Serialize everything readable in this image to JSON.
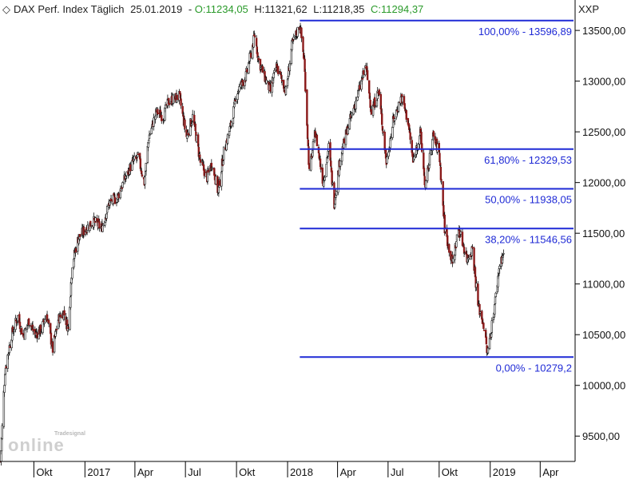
{
  "header": {
    "title": "DAX Perf. Index Täglich",
    "date": "25.01.2019",
    "open": "O:11234,05",
    "high": "H:11321,62",
    "low": "L:11218,35",
    "close": "C:11294,37",
    "symbol_label": "XXP",
    "open_color": "#2a9a2a",
    "high_color": "#222222",
    "low_color": "#222222",
    "close_color": "#2a9a2a"
  },
  "watermark": {
    "brand_top": "Tradesignal",
    "brand_main": "online"
  },
  "chart_data": {
    "type": "line",
    "title": "DAX Perf. Index Täglich",
    "ylim": [
      9250,
      13800
    ],
    "y_ticks": [
      9500,
      10000,
      10500,
      11000,
      11500,
      12000,
      12500,
      13000,
      13500
    ],
    "y_tick_labels": [
      "9500,00",
      "10000,00",
      "10500,00",
      "11000,00",
      "11500,00",
      "12000,00",
      "12500,00",
      "13000,00",
      "13500,00"
    ],
    "x_ticks": [
      "2016-10-01",
      "2017-01-01",
      "2017-04-01",
      "2017-07-01",
      "2017-10-01",
      "2018-01-01",
      "2018-04-01",
      "2018-07-01",
      "2018-10-01",
      "2019-01-01",
      "2019-04-01"
    ],
    "x_tick_labels": [
      "Okt",
      "2017",
      "Apr",
      "Jul",
      "Okt",
      "2018",
      "Apr",
      "Jul",
      "Okt",
      "2019",
      "Apr"
    ],
    "xlim": [
      "2016-08-01",
      "2019-05-31"
    ],
    "grid": false,
    "series": [
      {
        "points": [
          [
            "2016-08-02",
            9250
          ],
          [
            "2016-08-10",
            10150
          ],
          [
            "2016-08-22",
            10500
          ],
          [
            "2016-09-02",
            10680
          ],
          [
            "2016-09-12",
            10480
          ],
          [
            "2016-09-22",
            10640
          ],
          [
            "2016-10-03",
            10500
          ],
          [
            "2016-10-14",
            10550
          ],
          [
            "2016-10-24",
            10700
          ],
          [
            "2016-11-04",
            10350
          ],
          [
            "2016-11-14",
            10650
          ],
          [
            "2016-11-24",
            10720
          ],
          [
            "2016-12-02",
            10550
          ],
          [
            "2016-12-09",
            11200
          ],
          [
            "2016-12-20",
            11450
          ],
          [
            "2017-01-03",
            11550
          ],
          [
            "2017-01-16",
            11620
          ],
          [
            "2017-01-31",
            11550
          ],
          [
            "2017-02-14",
            11800
          ],
          [
            "2017-02-28",
            11850
          ],
          [
            "2017-03-15",
            12050
          ],
          [
            "2017-03-28",
            12200
          ],
          [
            "2017-04-07",
            12250
          ],
          [
            "2017-04-18",
            12000
          ],
          [
            "2017-04-26",
            12450
          ],
          [
            "2017-05-10",
            12700
          ],
          [
            "2017-05-22",
            12650
          ],
          [
            "2017-06-01",
            12800
          ],
          [
            "2017-06-20",
            12850
          ],
          [
            "2017-07-03",
            12450
          ],
          [
            "2017-07-14",
            12650
          ],
          [
            "2017-07-28",
            12200
          ],
          [
            "2017-08-09",
            12050
          ],
          [
            "2017-08-18",
            12200
          ],
          [
            "2017-08-29",
            11900
          ],
          [
            "2017-09-08",
            12300
          ],
          [
            "2017-09-20",
            12550
          ],
          [
            "2017-10-03",
            12900
          ],
          [
            "2017-10-18",
            13050
          ],
          [
            "2017-11-03",
            13450
          ],
          [
            "2017-11-10",
            13200
          ],
          [
            "2017-11-20",
            13050
          ],
          [
            "2017-12-01",
            12900
          ],
          [
            "2017-12-12",
            13150
          ],
          [
            "2017-12-29",
            12900
          ],
          [
            "2018-01-09",
            13350
          ],
          [
            "2018-01-23",
            13560
          ],
          [
            "2018-01-31",
            13200
          ],
          [
            "2018-02-09",
            12100
          ],
          [
            "2018-02-20",
            12500
          ],
          [
            "2018-03-06",
            12000
          ],
          [
            "2018-03-16",
            12350
          ],
          [
            "2018-03-26",
            11800
          ],
          [
            "2018-04-06",
            12250
          ],
          [
            "2018-04-20",
            12550
          ],
          [
            "2018-05-04",
            12800
          ],
          [
            "2018-05-22",
            13150
          ],
          [
            "2018-06-01",
            12700
          ],
          [
            "2018-06-14",
            12900
          ],
          [
            "2018-06-28",
            12200
          ],
          [
            "2018-07-10",
            12600
          ],
          [
            "2018-07-25",
            12850
          ],
          [
            "2018-08-06",
            12600
          ],
          [
            "2018-08-15",
            12200
          ],
          [
            "2018-08-28",
            12500
          ],
          [
            "2018-09-06",
            11950
          ],
          [
            "2018-09-20",
            12450
          ],
          [
            "2018-10-01",
            12300
          ],
          [
            "2018-10-11",
            11550
          ],
          [
            "2018-10-25",
            11200
          ],
          [
            "2018-11-05",
            11550
          ],
          [
            "2018-11-20",
            11250
          ],
          [
            "2018-11-30",
            11350
          ],
          [
            "2018-12-10",
            10800
          ],
          [
            "2018-12-20",
            10600
          ],
          [
            "2018-12-27",
            10300
          ],
          [
            "2019-01-08",
            10750
          ],
          [
            "2019-01-18",
            11200
          ],
          [
            "2019-01-25",
            11294
          ]
        ]
      }
    ],
    "fibonacci": {
      "start_date": "2018-01-23",
      "end_date": "2019-05-31",
      "levels": [
        {
          "value": 13596.89,
          "label": "100,00% - 13596,89"
        },
        {
          "value": 12329.53,
          "label": "61,80% - 12329,53"
        },
        {
          "value": 11938.05,
          "label": "50,00% - 11938,05"
        },
        {
          "value": 11546.56,
          "label": "38,20% - 11546,56"
        },
        {
          "value": 10279.2,
          "label": "0,00% - 10279,2"
        }
      ],
      "color": "#1f2ad6"
    },
    "colors": {
      "up": "#ffffff",
      "down": "#8b1a1a",
      "outline": "#111111"
    }
  }
}
